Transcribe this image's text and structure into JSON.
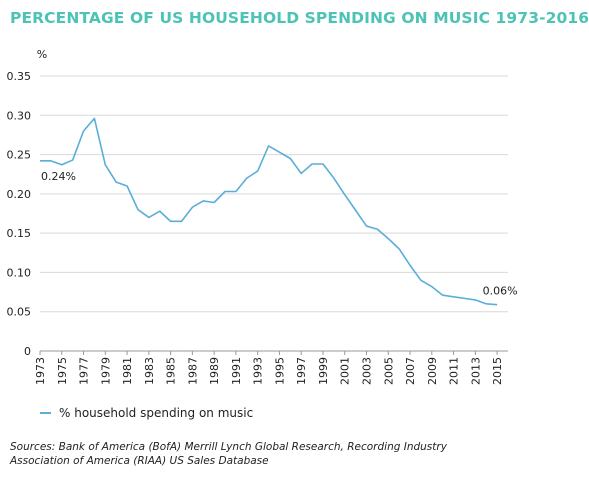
{
  "title": "PERCENTAGE OF US HOUSEHOLD SPENDING ON MUSIC 1973-2016",
  "chart_data": {
    "type": "line",
    "title": "PERCENTAGE OF US HOUSEHOLD SPENDING ON MUSIC 1973-2016",
    "xlabel": "",
    "ylabel": "%",
    "ylim": [
      0,
      0.35
    ],
    "yticks": [
      "0",
      "0.05",
      "0.10",
      "0.15",
      "0.20",
      "0.25",
      "0.30",
      "0.35"
    ],
    "yticks_values": [
      0,
      0.05,
      0.1,
      0.15,
      0.2,
      0.25,
      0.3,
      0.35
    ],
    "xlim": [
      1973,
      2016
    ],
    "xticks": [
      "1973",
      "1975",
      "1977",
      "1979",
      "1981",
      "1983",
      "1985",
      "1987",
      "1989",
      "1991",
      "1993",
      "1995",
      "1997",
      "1999",
      "2001",
      "2003",
      "2005",
      "2007",
      "2009",
      "2011",
      "2013",
      "2015"
    ],
    "grid": "horizontal",
    "legend_position": "bottom-left",
    "series": [
      {
        "name": "% household spending on music",
        "color": "#5aaed8",
        "x": [
          1973,
          1974,
          1975,
          1976,
          1977,
          1978,
          1979,
          1980,
          1981,
          1982,
          1983,
          1984,
          1985,
          1986,
          1987,
          1988,
          1989,
          1990,
          1991,
          1992,
          1993,
          1994,
          1995,
          1996,
          1997,
          1998,
          1999,
          2000,
          2001,
          2002,
          2003,
          2004,
          2005,
          2006,
          2007,
          2008,
          2009,
          2010,
          2011,
          2012,
          2013,
          2014,
          2015
        ],
        "values": [
          0.242,
          0.242,
          0.237,
          0.243,
          0.28,
          0.296,
          0.237,
          0.215,
          0.21,
          0.18,
          0.17,
          0.178,
          0.165,
          0.165,
          0.183,
          0.191,
          0.189,
          0.203,
          0.203,
          0.22,
          0.229,
          0.261,
          0.253,
          0.245,
          0.226,
          0.238,
          0.238,
          0.22,
          0.199,
          0.179,
          0.159,
          0.155,
          0.143,
          0.13,
          0.109,
          0.09,
          0.082,
          0.071,
          0.069,
          0.067,
          0.065,
          0.06,
          0.059
        ]
      }
    ],
    "annotations": [
      {
        "text": "0.24%",
        "x": 1973,
        "y": 0.242
      },
      {
        "text": "0.06%",
        "x": 2015,
        "y": 0.059
      }
    ]
  },
  "legend_label": "% household spending on music",
  "source": "Sources: Bank of America (BofA) Merrill Lynch Global Research,  Recording Industry Association of America (RIAA) US Sales Database"
}
